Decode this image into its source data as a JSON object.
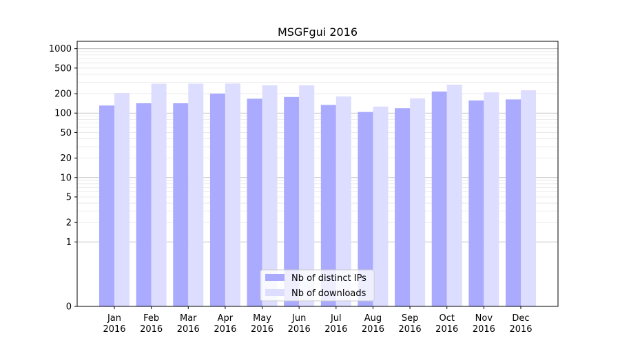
{
  "chart_data": {
    "type": "bar",
    "title": "MSGFgui 2016",
    "xlabel": "",
    "ylabel": "",
    "yscale": "symlog",
    "ylim": [
      0,
      1300
    ],
    "grid": true,
    "legend_position": "bottom-center",
    "categories": [
      [
        "Jan",
        "2016"
      ],
      [
        "Feb",
        "2016"
      ],
      [
        "Mar",
        "2016"
      ],
      [
        "Apr",
        "2016"
      ],
      [
        "May",
        "2016"
      ],
      [
        "Jun",
        "2016"
      ],
      [
        "Jul",
        "2016"
      ],
      [
        "Aug",
        "2016"
      ],
      [
        "Sep",
        "2016"
      ],
      [
        "Oct",
        "2016"
      ],
      [
        "Nov",
        "2016"
      ],
      [
        "Dec",
        "2016"
      ]
    ],
    "series": [
      {
        "name": "Nb of distinct IPs",
        "color": "#aaaaff",
        "values": [
          131,
          142,
          142,
          201,
          167,
          178,
          134,
          104,
          119,
          216,
          157,
          163
        ]
      },
      {
        "name": "Nb of downloads",
        "color": "#ddddff",
        "values": [
          205,
          286,
          286,
          288,
          270,
          270,
          181,
          126,
          169,
          276,
          210,
          226
        ]
      }
    ],
    "y_ticks": [
      0,
      1,
      2,
      5,
      10,
      20,
      50,
      100,
      200,
      500,
      1000
    ],
    "y_tick_labels": [
      "0",
      "1",
      "2",
      "5",
      "10",
      "20",
      "50",
      "100",
      "200",
      "500",
      "1000"
    ]
  }
}
